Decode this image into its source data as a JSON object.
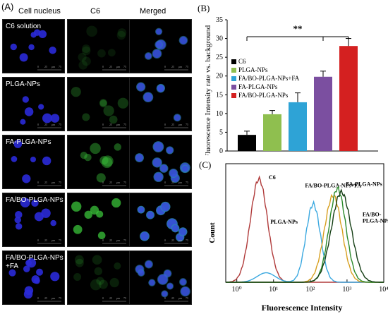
{
  "panel_a": {
    "label": "(A)",
    "columns": [
      "Cell nucleus",
      "C6",
      "Merged"
    ],
    "rows": [
      {
        "label": "C6 solution"
      },
      {
        "label": "PLGA-NPs"
      },
      {
        "label": "FA-PLGA-NPs"
      },
      {
        "label": "FA/BO-PLGA-NPs"
      },
      {
        "label": "FA/BO-PLGA-NPs\n+FA"
      }
    ],
    "scale_ticks": [
      "0",
      "25",
      "μm",
      "75"
    ]
  },
  "chart_data": [
    {
      "type": "bar",
      "panel_label": "(B)",
      "ylabel": "Fluorescence Intensity rate vs. background",
      "ylim": [
        0,
        35
      ],
      "yticks": [
        "0",
        "5",
        "10",
        "15",
        "20",
        "25",
        "30",
        "35"
      ],
      "categories": [
        "C6",
        "PLGA-NPs",
        "FA/BO-PLGA-NPs+FA",
        "FA-PLGA-NPs",
        "FA/BO-PLGA-NPs"
      ],
      "values": [
        4.3,
        9.8,
        13.0,
        19.8,
        28.0
      ],
      "errors": [
        1.0,
        1.0,
        2.5,
        1.5,
        2.0
      ],
      "colors": [
        "#000000",
        "#8fbf4f",
        "#2ea3d6",
        "#7b4fa0",
        "#d42020"
      ],
      "significance": "**",
      "legend_position": "top-left"
    },
    {
      "type": "line",
      "panel_label": "(C)",
      "xlabel": "Fluorescence   Intensity",
      "ylabel": "Count",
      "x_scale": "log",
      "xlim": [
        0.5,
        10000
      ],
      "xticks": [
        "10⁰",
        "10¹",
        "10²",
        "10³",
        "10⁴"
      ],
      "series": [
        {
          "name": "C6",
          "color": "#b03a3a",
          "peak": 4,
          "height": 0.87,
          "spread": 0.33
        },
        {
          "name": "PLGA-NPs",
          "color": "#3aa8e0",
          "peak": 120,
          "height": 0.66,
          "spread": 0.28
        },
        {
          "name": "FA/BO-PLGA-NPs+FA",
          "color": "#d8a020",
          "peak": 420,
          "height": 0.73,
          "spread": 0.34
        },
        {
          "name": "FA-PLGA-NPs",
          "color": "#2a8a2a",
          "peak": 550,
          "height": 0.79,
          "spread": 0.32
        },
        {
          "name": "FA/BO-\nPLGA-NPs",
          "color": "#143e14",
          "peak": 700,
          "height": 0.76,
          "spread": 0.38
        }
      ]
    }
  ]
}
